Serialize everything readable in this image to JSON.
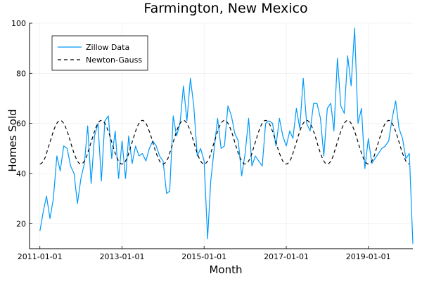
{
  "chart_data": {
    "type": "line",
    "title": "Farmington, New Mexico",
    "xlabel": "Month",
    "ylabel": "Homes Sold",
    "x_tick_labels": [
      "2011-01-01",
      "2013-01-01",
      "2015-01-01",
      "2017-01-01",
      "2019-01-01"
    ],
    "y_ticks": [
      20,
      40,
      60,
      80,
      100
    ],
    "ylim": [
      10,
      100
    ],
    "xlim": [
      "2010-10-01",
      "2020-02-01"
    ],
    "grid": true,
    "legend_position": "top-left",
    "colors": {
      "zillow": "#009AFA",
      "newton": "#000000"
    },
    "series": [
      {
        "name": "Zillow Data",
        "style": "solid",
        "points": [
          [
            "2011-01-01",
            17
          ],
          [
            "2011-02-01",
            25
          ],
          [
            "2011-03-01",
            31
          ],
          [
            "2011-04-01",
            22
          ],
          [
            "2011-05-01",
            30
          ],
          [
            "2011-06-01",
            47
          ],
          [
            "2011-07-01",
            41
          ],
          [
            "2011-08-01",
            51
          ],
          [
            "2011-09-01",
            50
          ],
          [
            "2011-10-01",
            43
          ],
          [
            "2011-11-01",
            40
          ],
          [
            "2011-12-01",
            28
          ],
          [
            "2012-01-01",
            38
          ],
          [
            "2012-02-01",
            44
          ],
          [
            "2012-03-01",
            59
          ],
          [
            "2012-04-01",
            36
          ],
          [
            "2012-05-01",
            55
          ],
          [
            "2012-06-01",
            60
          ],
          [
            "2012-07-01",
            37
          ],
          [
            "2012-08-01",
            61
          ],
          [
            "2012-09-01",
            63
          ],
          [
            "2012-10-01",
            46
          ],
          [
            "2012-11-01",
            57
          ],
          [
            "2012-12-01",
            38
          ],
          [
            "2013-01-01",
            53
          ],
          [
            "2013-02-01",
            38
          ],
          [
            "2013-03-01",
            55
          ],
          [
            "2013-04-01",
            44
          ],
          [
            "2013-05-01",
            51
          ],
          [
            "2013-06-01",
            47
          ],
          [
            "2013-07-01",
            48
          ],
          [
            "2013-08-01",
            45
          ],
          [
            "2013-09-01",
            50
          ],
          [
            "2013-10-01",
            53
          ],
          [
            "2013-11-01",
            51
          ],
          [
            "2013-12-01",
            47
          ],
          [
            "2014-01-01",
            45
          ],
          [
            "2014-02-01",
            32
          ],
          [
            "2014-03-01",
            33
          ],
          [
            "2014-04-01",
            63
          ],
          [
            "2014-05-01",
            55
          ],
          [
            "2014-06-01",
            60
          ],
          [
            "2014-07-01",
            75
          ],
          [
            "2014-08-01",
            61
          ],
          [
            "2014-09-01",
            78
          ],
          [
            "2014-10-01",
            67
          ],
          [
            "2014-11-01",
            47
          ],
          [
            "2014-12-01",
            50
          ],
          [
            "2015-01-01",
            45
          ],
          [
            "2015-02-01",
            14
          ],
          [
            "2015-03-01",
            37
          ],
          [
            "2015-04-01",
            50
          ],
          [
            "2015-05-01",
            62
          ],
          [
            "2015-06-01",
            50
          ],
          [
            "2015-07-01",
            51
          ],
          [
            "2015-08-01",
            67
          ],
          [
            "2015-09-01",
            63
          ],
          [
            "2015-10-01",
            56
          ],
          [
            "2015-11-01",
            53
          ],
          [
            "2015-12-01",
            39
          ],
          [
            "2016-01-01",
            48
          ],
          [
            "2016-02-01",
            62
          ],
          [
            "2016-03-01",
            43
          ],
          [
            "2016-04-01",
            47
          ],
          [
            "2016-05-01",
            45
          ],
          [
            "2016-06-01",
            43
          ],
          [
            "2016-07-01",
            60
          ],
          [
            "2016-08-01",
            61
          ],
          [
            "2016-09-01",
            60
          ],
          [
            "2016-10-01",
            51
          ],
          [
            "2016-11-01",
            62
          ],
          [
            "2016-12-01",
            55
          ],
          [
            "2017-01-01",
            51
          ],
          [
            "2017-02-01",
            57
          ],
          [
            "2017-03-01",
            54
          ],
          [
            "2017-04-01",
            66
          ],
          [
            "2017-05-01",
            58
          ],
          [
            "2017-06-01",
            78
          ],
          [
            "2017-07-01",
            60
          ],
          [
            "2017-08-01",
            57
          ],
          [
            "2017-09-01",
            68
          ],
          [
            "2017-10-01",
            68
          ],
          [
            "2017-11-01",
            62
          ],
          [
            "2017-12-01",
            47
          ],
          [
            "2018-01-01",
            66
          ],
          [
            "2018-02-01",
            68
          ],
          [
            "2018-03-01",
            57
          ],
          [
            "2018-04-01",
            86
          ],
          [
            "2018-05-01",
            67
          ],
          [
            "2018-06-01",
            64
          ],
          [
            "2018-07-01",
            87
          ],
          [
            "2018-08-01",
            75
          ],
          [
            "2018-09-01",
            98
          ],
          [
            "2018-10-01",
            60
          ],
          [
            "2018-11-01",
            66
          ],
          [
            "2018-12-01",
            42
          ],
          [
            "2019-01-01",
            54
          ],
          [
            "2019-02-01",
            44
          ],
          [
            "2019-03-01",
            46
          ],
          [
            "2019-04-01",
            48
          ],
          [
            "2019-05-01",
            50
          ],
          [
            "2019-06-01",
            51
          ],
          [
            "2019-07-01",
            53
          ],
          [
            "2019-08-01",
            62
          ],
          [
            "2019-09-01",
            69
          ],
          [
            "2019-10-01",
            58
          ],
          [
            "2019-11-01",
            54
          ],
          [
            "2019-12-01",
            46
          ],
          [
            "2020-01-01",
            48
          ],
          [
            "2020-02-01",
            12
          ]
        ]
      },
      {
        "name": "Newton-Gauss",
        "style": "dashed",
        "model": {
          "type": "sinusoid",
          "mean": 52.5,
          "amplitude": 8.7,
          "period_months": 12,
          "peak_month": 7,
          "x_start": "2011-01-01",
          "x_end": "2020-01-01"
        }
      }
    ]
  }
}
